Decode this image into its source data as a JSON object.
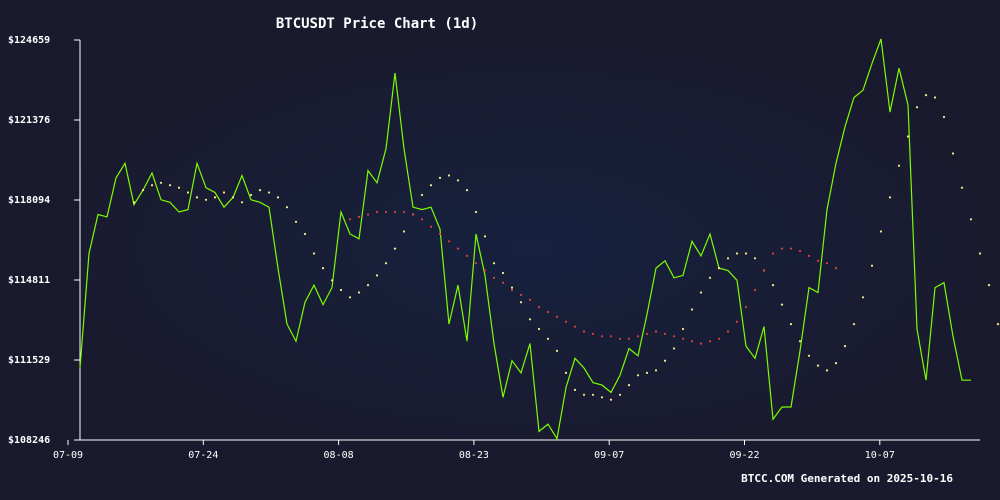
{
  "chart_data": {
    "type": "line",
    "title": "BTCUSDT Price Chart (1d)",
    "footer": "BTCC.COM Generated on 2025-10-16",
    "xlabel": "",
    "ylabel": "",
    "x_ticks": [
      "07-09",
      "07-24",
      "08-08",
      "08-23",
      "09-07",
      "09-22",
      "10-07"
    ],
    "y_ticks": [
      108246,
      111529,
      114811,
      118094,
      121376,
      124659
    ],
    "y_tick_labels": [
      "$108246",
      "$111529",
      "$114811",
      "$118094",
      "$121376",
      "$124659"
    ],
    "ylim": [
      108246,
      124659
    ],
    "grid": false,
    "colors": {
      "background": "#1a1a2e",
      "background_glow": "#16213e",
      "price_line": "#7cfc00",
      "ma_short": "#ffeb8a",
      "ma_long": "#e0403a",
      "text": "#ffffff",
      "axis": "#ffffff"
    },
    "series": [
      {
        "key": "price",
        "style": "line",
        "values": [
          111200,
          115900,
          117500,
          117400,
          119000,
          119600,
          117900,
          118500,
          119200,
          118100,
          118000,
          117600,
          117700,
          119600,
          118600,
          118400,
          117800,
          118200,
          119100,
          118100,
          118000,
          117800,
          115300,
          113000,
          112300,
          113900,
          114600,
          113800,
          114500,
          117600,
          116700,
          116500,
          119300,
          118800,
          120200,
          123300,
          120200,
          117800,
          117700,
          117800,
          116900,
          113000,
          114600,
          112300,
          116700,
          115000,
          112200,
          110000,
          111500,
          111000,
          112200,
          108600,
          108900,
          108300,
          110400,
          111600,
          111200,
          110600,
          110500,
          110200,
          110900,
          112000,
          111700,
          113400,
          115300,
          115600,
          114900,
          115000,
          116400,
          115800,
          116700,
          115300,
          115200,
          114800,
          112100,
          111600,
          112900,
          109100,
          109600,
          109600,
          111900,
          114500,
          114300,
          117700,
          119600,
          121100,
          122300,
          122600,
          123700,
          124700,
          121700,
          123500,
          122000,
          112800,
          110700,
          114500,
          114700,
          112500,
          110700,
          110700
        ]
      },
      {
        "key": "ma_short",
        "style": "dotted",
        "start_index": 6,
        "values": [
          118000,
          118500,
          118700,
          118800,
          118700,
          118600,
          118400,
          118200,
          118100,
          118200,
          118400,
          118200,
          118000,
          118300,
          118500,
          118400,
          118200,
          117800,
          117200,
          116700,
          115900,
          115300,
          114800,
          114400,
          114100,
          114300,
          114600,
          115000,
          115500,
          116100,
          116800,
          117500,
          118300,
          118700,
          119000,
          119100,
          118900,
          118500,
          117600,
          116600,
          115500,
          115100,
          114500,
          113900,
          113200,
          112800,
          112400,
          111900,
          111000,
          110300,
          110100,
          110100,
          110000,
          109900,
          110100,
          110500,
          110900,
          111000,
          111100,
          111500,
          112000,
          112800,
          113600,
          114300,
          114900,
          115300,
          115700,
          115900,
          115900,
          115700,
          115200,
          114600,
          113800,
          113000,
          112300,
          111700,
          111300,
          111100,
          111400,
          112100,
          113000,
          114100,
          115400,
          116800,
          118200,
          119500,
          120700,
          121900,
          122400,
          122300,
          121500,
          120000,
          118600,
          117300,
          115900,
          114600,
          113000
        ]
      },
      {
        "key": "ma_long",
        "style": "dotted",
        "start_index": 30,
        "values": [
          117300,
          117400,
          117500,
          117600,
          117600,
          117600,
          117600,
          117500,
          117300,
          117000,
          116700,
          116400,
          116100,
          115800,
          115500,
          115200,
          114900,
          114700,
          114400,
          114200,
          114000,
          113700,
          113500,
          113300,
          113100,
          112900,
          112700,
          112600,
          112500,
          112500,
          112400,
          112400,
          112500,
          112600,
          112700,
          112600,
          112500,
          112400,
          112300,
          112200,
          112300,
          112400,
          112700,
          113100,
          113700,
          114400,
          115200,
          115900,
          116100,
          116100,
          116000,
          115800,
          115600,
          115500,
          115300
        ]
      }
    ]
  }
}
